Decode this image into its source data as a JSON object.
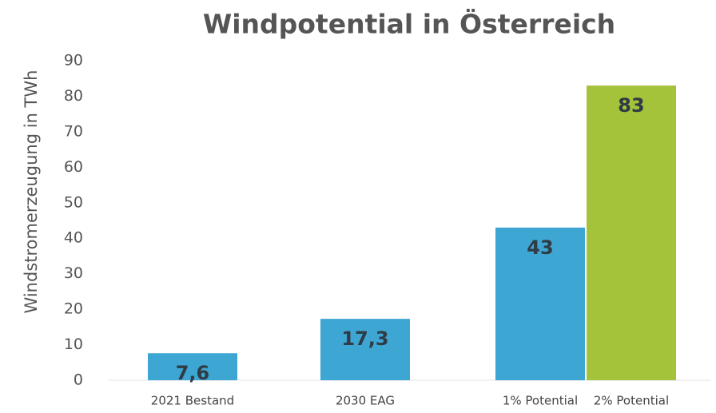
{
  "chart_data": {
    "type": "bar",
    "title": "Windpotential in Österreich",
    "y_label": "Windstromerzeugung in TWh",
    "categories": [
      "2021 Bestand",
      "2030 EAG",
      "1% Potential",
      "2% Potential"
    ],
    "values": [
      7.6,
      17.3,
      43,
      83
    ],
    "value_labels": [
      "7,6",
      "17,3",
      "43",
      "83"
    ],
    "colors": [
      "#3ea6d3",
      "#3ea6d3",
      "#3ea6d3",
      "#a4c23a"
    ],
    "ylim": [
      0,
      90
    ],
    "yticks": [
      0,
      10,
      20,
      30,
      40,
      50,
      60,
      70,
      80,
      90
    ],
    "grid": false
  }
}
